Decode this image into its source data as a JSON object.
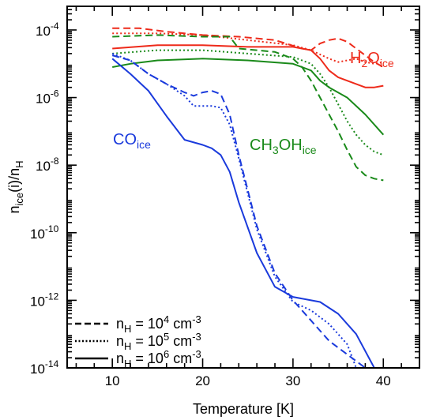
{
  "chart_data": {
    "type": "line",
    "xlabel": "Temperature [K]",
    "ylabel": {
      "main": "n",
      "sub1": "ice",
      "mid": "(i)/n",
      "sub2": "H"
    },
    "xlim": [
      5,
      44
    ],
    "ylim_log10": [
      -14,
      -3.3
    ],
    "log_y": true,
    "x_ticks": [
      10,
      20,
      30,
      40
    ],
    "x_tick_labels": [
      "10",
      "20",
      "30",
      "40"
    ],
    "y_ticks": [
      {
        "exp": -14,
        "base": "10",
        "label": "-14"
      },
      {
        "exp": -12,
        "base": "10",
        "label": "-12"
      },
      {
        "exp": -10,
        "base": "10",
        "label": "-10"
      },
      {
        "exp": -8,
        "base": "10",
        "label": "-8"
      },
      {
        "exp": -6,
        "base": "10",
        "label": "-6"
      },
      {
        "exp": -4,
        "base": "10",
        "label": "-4"
      }
    ],
    "species_labels": [
      {
        "id": "h2o",
        "main": "H",
        "sub": "2",
        "main2": "O",
        "sub2": "ice",
        "color": "#ee2a1a"
      },
      {
        "id": "ch3oh",
        "main": "CH",
        "sub": "3",
        "main2": "OH",
        "sub2": "ice",
        "color": "#1a8a1a"
      },
      {
        "id": "co",
        "main": "CO",
        "sub": "",
        "main2": "",
        "sub2": "ice",
        "color": "#1a3adc"
      }
    ],
    "legend": {
      "placement": "bottom-left",
      "entries": [
        {
          "style": "dashed",
          "prefix": "n",
          "sub": "H",
          "eq": " = 10",
          "sup": "4",
          "unit": " cm",
          "unit_sup": "-3"
        },
        {
          "style": "dotted",
          "prefix": "n",
          "sub": "H",
          "eq": " = 10",
          "sup": "5",
          "unit": " cm",
          "unit_sup": "-3"
        },
        {
          "style": "solid",
          "prefix": "n",
          "sub": "H",
          "eq": " = 10",
          "sup": "6",
          "unit": " cm",
          "unit_sup": "-3"
        }
      ]
    },
    "series": [
      {
        "species": "H2O",
        "density": "1e4",
        "style": "dashed",
        "color": "#ee2a1a",
        "points": [
          [
            10,
            -3.95
          ],
          [
            13,
            -3.95
          ],
          [
            16,
            -4.05
          ],
          [
            20,
            -4.15
          ],
          [
            24,
            -4.2
          ],
          [
            28,
            -4.3
          ],
          [
            31,
            -4.55
          ],
          [
            32,
            -4.6
          ],
          [
            33,
            -4.4
          ],
          [
            34,
            -4.3
          ],
          [
            35,
            -4.25
          ],
          [
            36,
            -4.35
          ],
          [
            37,
            -4.55
          ],
          [
            38,
            -4.75
          ],
          [
            39,
            -4.95
          ],
          [
            40,
            -5.1
          ]
        ]
      },
      {
        "species": "H2O",
        "density": "1e5",
        "style": "dotted",
        "color": "#ee2a1a",
        "points": [
          [
            10,
            -4.1
          ],
          [
            15,
            -4.1
          ],
          [
            20,
            -4.15
          ],
          [
            25,
            -4.3
          ],
          [
            30,
            -4.45
          ],
          [
            32,
            -4.6
          ],
          [
            34,
            -4.85
          ],
          [
            35,
            -4.95
          ],
          [
            36,
            -4.9
          ],
          [
            37,
            -4.85
          ],
          [
            38,
            -4.95
          ],
          [
            39,
            -5.0
          ],
          [
            40,
            -4.95
          ]
        ]
      },
      {
        "species": "H2O",
        "density": "1e6",
        "style": "solid",
        "color": "#ee2a1a",
        "points": [
          [
            10,
            -4.55
          ],
          [
            15,
            -4.45
          ],
          [
            20,
            -4.45
          ],
          [
            25,
            -4.5
          ],
          [
            30,
            -4.5
          ],
          [
            32,
            -4.6
          ],
          [
            33,
            -4.85
          ],
          [
            34,
            -5.2
          ],
          [
            35,
            -5.4
          ],
          [
            36,
            -5.5
          ],
          [
            37,
            -5.6
          ],
          [
            38,
            -5.7
          ],
          [
            39,
            -5.7
          ],
          [
            40,
            -5.65
          ]
        ]
      },
      {
        "species": "CH3OH",
        "density": "1e4",
        "style": "dashed",
        "color": "#1a8a1a",
        "points": [
          [
            10,
            -4.2
          ],
          [
            15,
            -4.15
          ],
          [
            20,
            -4.2
          ],
          [
            22,
            -4.2
          ],
          [
            23,
            -4.2
          ],
          [
            24,
            -4.55
          ],
          [
            26,
            -4.6
          ],
          [
            28,
            -4.65
          ],
          [
            30,
            -4.85
          ],
          [
            31,
            -5.1
          ],
          [
            32,
            -5.5
          ],
          [
            33,
            -6.0
          ],
          [
            34,
            -6.5
          ],
          [
            35,
            -7.0
          ],
          [
            36,
            -7.55
          ],
          [
            37,
            -8.05
          ],
          [
            38,
            -8.3
          ],
          [
            39,
            -8.4
          ],
          [
            40,
            -8.45
          ]
        ]
      },
      {
        "species": "CH3OH",
        "density": "1e5",
        "style": "dotted",
        "color": "#1a8a1a",
        "points": [
          [
            10,
            -4.7
          ],
          [
            15,
            -4.6
          ],
          [
            20,
            -4.6
          ],
          [
            25,
            -4.7
          ],
          [
            30,
            -4.8
          ],
          [
            32,
            -5.0
          ],
          [
            33,
            -5.3
          ],
          [
            34,
            -5.7
          ],
          [
            35,
            -6.2
          ],
          [
            36,
            -6.7
          ],
          [
            37,
            -7.1
          ],
          [
            38,
            -7.4
          ],
          [
            39,
            -7.6
          ],
          [
            40,
            -7.7
          ]
        ]
      },
      {
        "species": "CH3OH",
        "density": "1e6",
        "style": "solid",
        "color": "#1a8a1a",
        "points": [
          [
            10,
            -5.1
          ],
          [
            12,
            -5.0
          ],
          [
            15,
            -4.9
          ],
          [
            20,
            -4.85
          ],
          [
            25,
            -4.9
          ],
          [
            30,
            -5.0
          ],
          [
            32,
            -5.2
          ],
          [
            33,
            -5.5
          ],
          [
            34,
            -5.7
          ],
          [
            36,
            -6.0
          ],
          [
            38,
            -6.5
          ],
          [
            40,
            -7.1
          ]
        ]
      },
      {
        "species": "CO",
        "density": "1e4",
        "style": "dashed",
        "color": "#1a3adc",
        "points": [
          [
            10,
            -4.75
          ],
          [
            12,
            -4.9
          ],
          [
            14,
            -5.3
          ],
          [
            16,
            -5.6
          ],
          [
            18,
            -5.85
          ],
          [
            19,
            -5.95
          ],
          [
            20,
            -5.85
          ],
          [
            21,
            -5.8
          ],
          [
            22,
            -5.9
          ],
          [
            23,
            -6.5
          ],
          [
            24,
            -7.7
          ],
          [
            26,
            -9.8
          ],
          [
            28,
            -11.2
          ],
          [
            30,
            -12.0
          ],
          [
            32,
            -12.6
          ],
          [
            34,
            -13.2
          ],
          [
            36,
            -13.6
          ],
          [
            38,
            -14.0
          ]
        ]
      },
      {
        "species": "CO",
        "density": "1e5",
        "style": "dotted",
        "color": "#1a3adc",
        "points": [
          [
            10,
            -4.7
          ],
          [
            12,
            -4.9
          ],
          [
            14,
            -5.3
          ],
          [
            16,
            -5.6
          ],
          [
            18,
            -5.95
          ],
          [
            19,
            -6.25
          ],
          [
            20,
            -6.25
          ],
          [
            21,
            -6.25
          ],
          [
            22,
            -6.3
          ],
          [
            23,
            -6.8
          ],
          [
            24,
            -7.8
          ],
          [
            26,
            -9.9
          ],
          [
            28,
            -11.3
          ],
          [
            30,
            -12.05
          ],
          [
            32,
            -12.3
          ],
          [
            34,
            -12.7
          ],
          [
            36,
            -13.3
          ],
          [
            37,
            -14.0
          ]
        ]
      },
      {
        "species": "CO",
        "density": "1e6",
        "style": "solid",
        "color": "#1a3adc",
        "points": [
          [
            10,
            -4.85
          ],
          [
            12,
            -5.3
          ],
          [
            14,
            -5.8
          ],
          [
            16,
            -6.55
          ],
          [
            18,
            -7.25
          ],
          [
            20,
            -7.4
          ],
          [
            21,
            -7.5
          ],
          [
            22,
            -7.7
          ],
          [
            23,
            -8.2
          ],
          [
            24,
            -9.1
          ],
          [
            26,
            -10.6
          ],
          [
            28,
            -11.6
          ],
          [
            30,
            -11.9
          ],
          [
            32,
            -12.0
          ],
          [
            33,
            -12.05
          ],
          [
            35,
            -12.4
          ],
          [
            37,
            -13.0
          ],
          [
            39,
            -14.0
          ]
        ]
      }
    ]
  }
}
